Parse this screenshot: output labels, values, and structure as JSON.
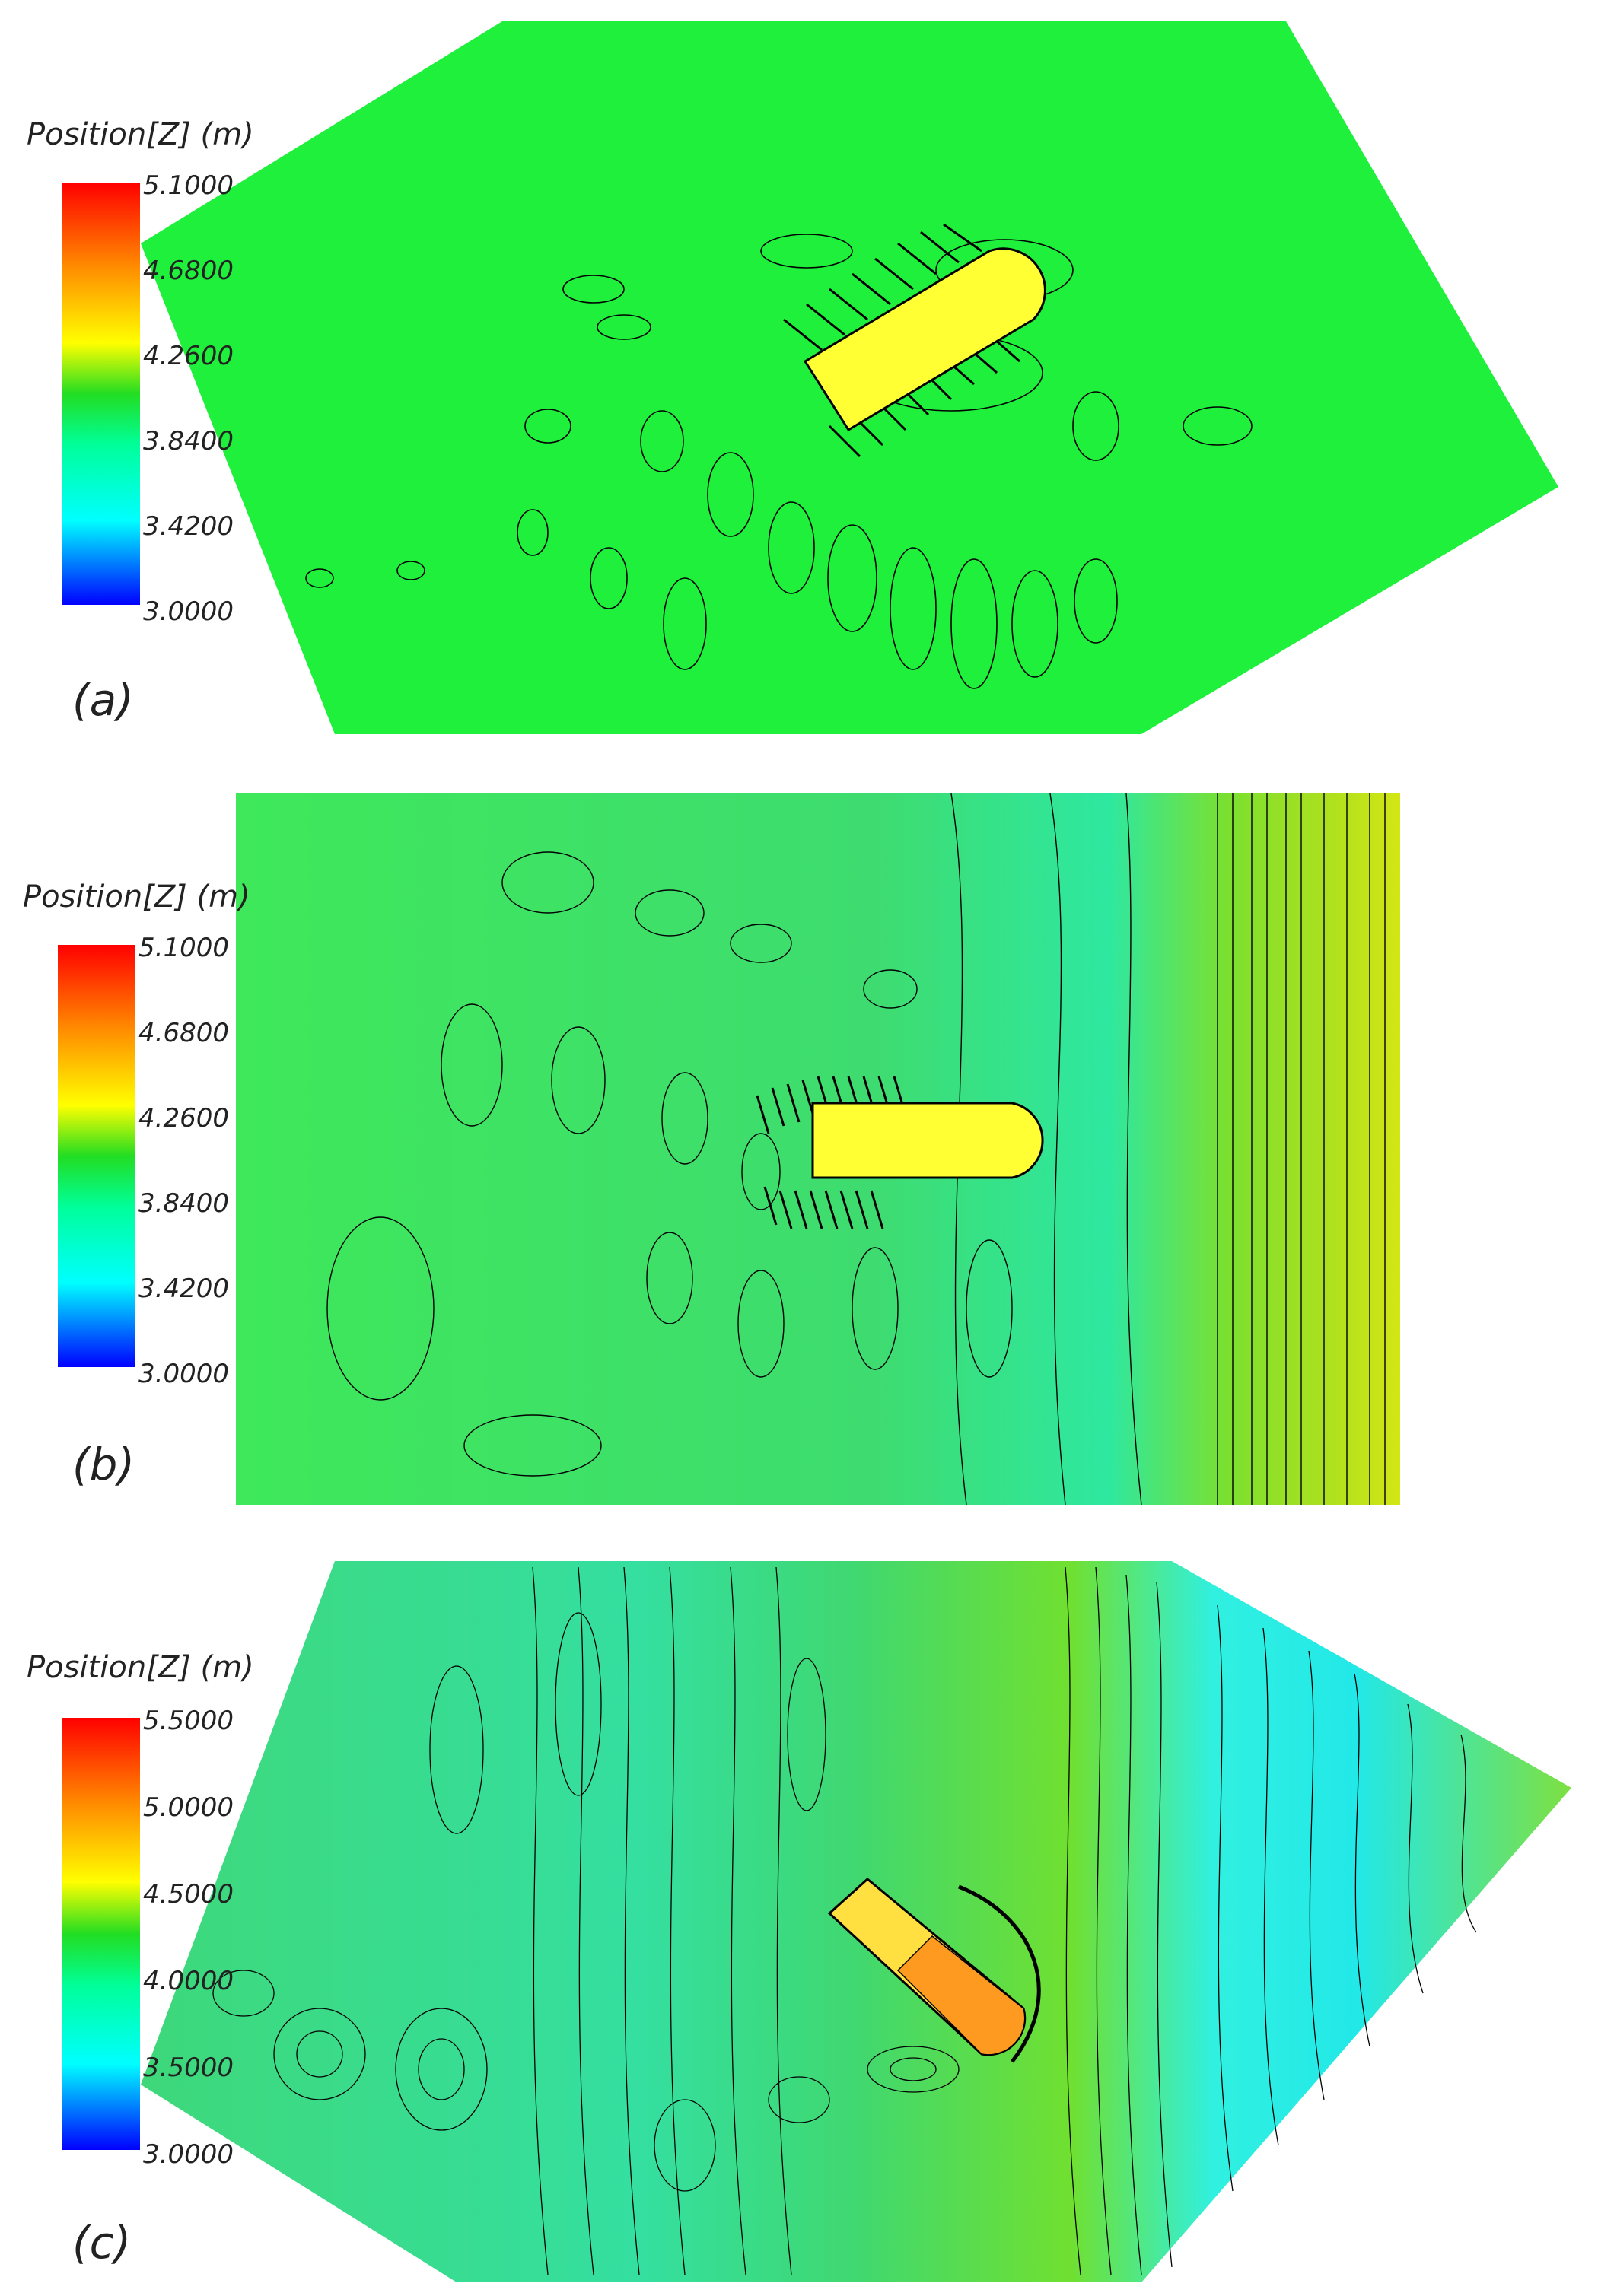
{
  "panels": [
    {
      "label": "(a)",
      "colorbar": {
        "title": "Position[Z] (m)",
        "ticks": [
          "5.1000",
          "4.6800",
          "4.2600",
          "3.8400",
          "3.4200",
          "3.0000"
        ],
        "min": 3.0,
        "max": 5.1
      },
      "background_color": "#1ef03c"
    },
    {
      "label": "(b)",
      "colorbar": {
        "title": "Position[Z] (m)",
        "ticks": [
          "5.1000",
          "4.6800",
          "4.2600",
          "3.8400",
          "3.4200",
          "3.0000"
        ],
        "min": 3.0,
        "max": 5.1
      },
      "background_color": "#36e64a"
    },
    {
      "label": "(c)",
      "colorbar": {
        "title": "Position[Z] (m)",
        "ticks": [
          "5.5000",
          "5.0000",
          "4.5000",
          "4.0000",
          "3.5000",
          "3.0000"
        ],
        "min": 3.0,
        "max": 5.5
      },
      "background_color": "#3ed87a"
    }
  ],
  "colors": {
    "vessel": "#ffff33",
    "contour_line": "#000000",
    "scale": [
      "#ff0000",
      "#ff8c00",
      "#ffff00",
      "#22dd22",
      "#00ff99",
      "#00ffff",
      "#0000ff"
    ]
  }
}
